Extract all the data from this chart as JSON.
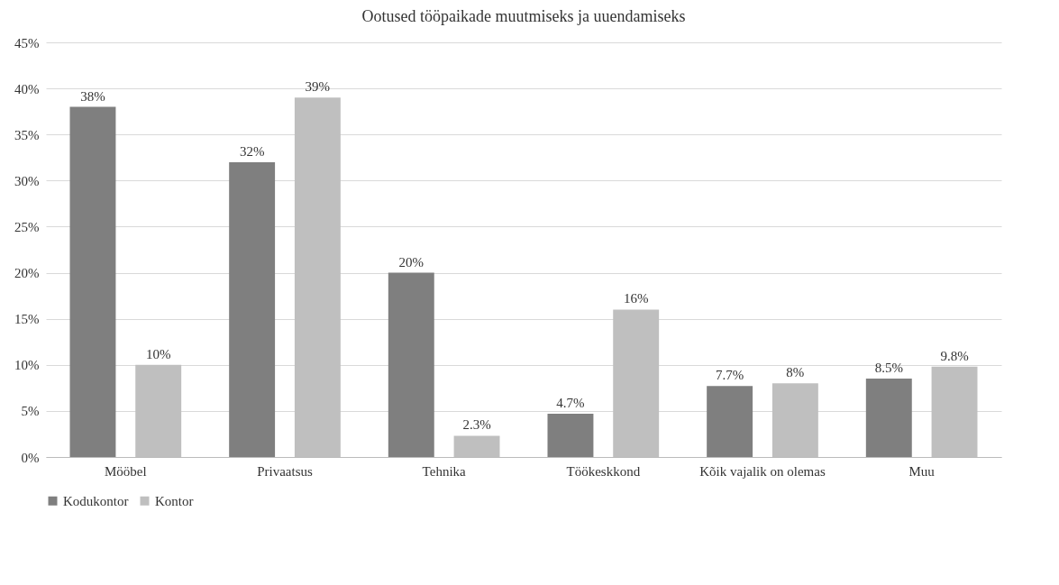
{
  "chart_data": {
    "type": "bar",
    "title": "Ootused tööpaikade muutmiseks ja uuendamiseks",
    "categories": [
      "Mööbel",
      "Privaatsus",
      "Tehnika",
      "Töökeskkond",
      "Kõik vajalik on olemas",
      "Muu"
    ],
    "series": [
      {
        "name": "Kodukontor",
        "color": "#7f7f7f",
        "values": [
          38,
          32,
          20,
          4.7,
          7.7,
          8.5
        ],
        "value_labels": [
          "38%",
          "32%",
          "20%",
          "4.7%",
          "7.7%",
          "8.5%"
        ]
      },
      {
        "name": "Kontor",
        "color": "#bfbfbf",
        "values": [
          10,
          39,
          2.3,
          16,
          8,
          9.8
        ],
        "value_labels": [
          "10%",
          "39%",
          "2.3%",
          "16%",
          "8%",
          "9.8%"
        ]
      }
    ],
    "ylim": [
      0,
      45
    ],
    "yticks": [
      {
        "value": 0,
        "label": "0%"
      },
      {
        "value": 5,
        "label": "5%"
      },
      {
        "value": 10,
        "label": "10%"
      },
      {
        "value": 15,
        "label": "15%"
      },
      {
        "value": 20,
        "label": "20%"
      },
      {
        "value": 25,
        "label": "25%"
      },
      {
        "value": 30,
        "label": "30%"
      },
      {
        "value": 35,
        "label": "35%"
      },
      {
        "value": 40,
        "label": "40%"
      },
      {
        "value": 45,
        "label": "45%"
      }
    ],
    "grid": "y",
    "legend": "bottom"
  }
}
